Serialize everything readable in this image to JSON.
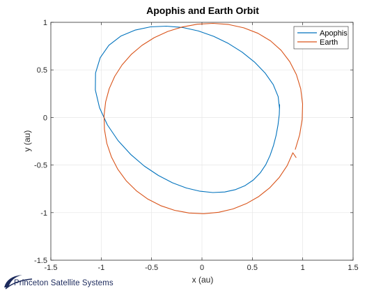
{
  "chart_data": {
    "type": "line",
    "title": "Apophis and Earth Orbit",
    "xlabel": "x (au)",
    "ylabel": "y (au)",
    "xlim": [
      -1.5,
      1.5
    ],
    "ylim": [
      -1.5,
      1
    ],
    "xticks": [
      -1.5,
      -1,
      -0.5,
      0,
      0.5,
      1,
      1.5
    ],
    "xtick_labels": [
      "-1.5",
      "-1",
      "-0.5",
      "0",
      "0.5",
      "1",
      "1.5"
    ],
    "yticks": [
      -1.5,
      -1,
      -0.5,
      0,
      0.5,
      1
    ],
    "ytick_labels": [
      "-1.5",
      "-1",
      "-0.5",
      "0",
      "0.5",
      "1"
    ],
    "grid": true,
    "legend_position": "top-right",
    "series": [
      {
        "name": "Apophis",
        "color": "#0072BD",
        "x": [
          0.77,
          0.756,
          0.707,
          0.626,
          0.521,
          0.398,
          0.262,
          0.117,
          -0.035,
          -0.192,
          -0.353,
          -0.511,
          -0.665,
          -0.806,
          -0.924,
          -1.01,
          -1.056,
          -1.058,
          -1.017,
          -0.939,
          -0.833,
          -0.708,
          -0.573,
          -0.433,
          -0.293,
          -0.155,
          -0.02,
          0.108,
          0.226,
          0.333,
          0.428,
          0.51,
          0.578,
          0.633,
          0.676,
          0.71,
          0.736,
          0.755,
          0.767,
          0.771,
          0.77
        ],
        "y": [
          0.09,
          0.22,
          0.346,
          0.468,
          0.583,
          0.687,
          0.778,
          0.853,
          0.909,
          0.946,
          0.96,
          0.952,
          0.918,
          0.855,
          0.759,
          0.628,
          0.468,
          0.289,
          0.103,
          -0.078,
          -0.243,
          -0.388,
          -0.51,
          -0.609,
          -0.686,
          -0.741,
          -0.775,
          -0.789,
          -0.783,
          -0.758,
          -0.716,
          -0.657,
          -0.583,
          -0.496,
          -0.399,
          -0.295,
          -0.187,
          -0.078,
          0.03,
          0.135,
          0.09
        ]
      },
      {
        "name": "Earth",
        "color": "#D95319",
        "x": [
          0.926,
          0.97,
          0.995,
          0.999,
          0.98,
          0.937,
          0.872,
          0.786,
          0.68,
          0.555,
          0.415,
          0.265,
          0.11,
          -0.045,
          -0.196,
          -0.34,
          -0.474,
          -0.595,
          -0.702,
          -0.793,
          -0.866,
          -0.921,
          -0.956,
          -0.972,
          -0.968,
          -0.944,
          -0.899,
          -0.835,
          -0.752,
          -0.652,
          -0.537,
          -0.41,
          -0.272,
          -0.128,
          0.019,
          0.166,
          0.308,
          0.442,
          0.565,
          0.675,
          0.769,
          0.846,
          0.902,
          0.934
        ],
        "y": [
          -0.335,
          -0.181,
          -0.02,
          0.142,
          0.301,
          0.45,
          0.586,
          0.705,
          0.806,
          0.885,
          0.942,
          0.977,
          0.989,
          0.98,
          0.951,
          0.904,
          0.839,
          0.758,
          0.662,
          0.553,
          0.432,
          0.302,
          0.164,
          0.02,
          -0.126,
          -0.272,
          -0.413,
          -0.545,
          -0.665,
          -0.77,
          -0.858,
          -0.927,
          -0.976,
          -1.004,
          -1.011,
          -0.996,
          -0.961,
          -0.905,
          -0.83,
          -0.737,
          -0.628,
          -0.505,
          -0.371,
          -0.42
        ]
      }
    ]
  },
  "footer": {
    "logo_text": "Princeton Satellite Systems"
  }
}
